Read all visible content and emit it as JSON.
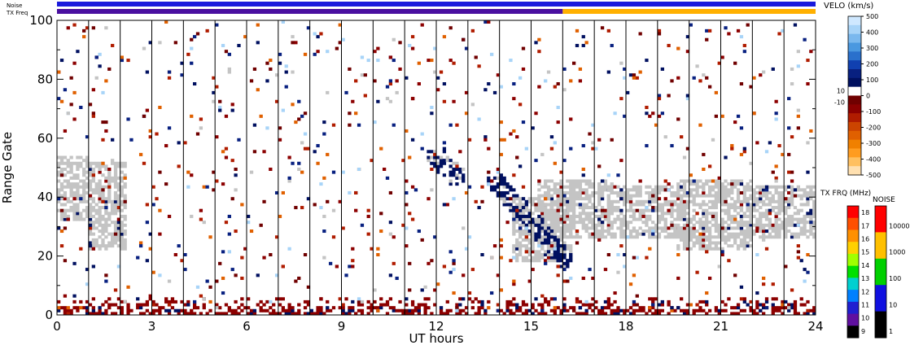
{
  "chart_data": {
    "type": "heatmap",
    "xlabel": "UT hours",
    "ylabel": "Range Gate",
    "xlim": [
      0,
      24
    ],
    "ylim": [
      0,
      100
    ],
    "x_ticks": [
      "0",
      "3",
      "6",
      "9",
      "12",
      "15",
      "18",
      "21",
      "24"
    ],
    "x_tick_values": [
      0,
      3,
      6,
      9,
      12,
      15,
      18,
      21,
      24
    ],
    "y_ticks": [
      "0",
      "20",
      "40",
      "60",
      "80",
      "100"
    ],
    "y_tick_values": [
      0,
      20,
      40,
      60,
      80,
      100
    ],
    "hour_markers": [
      1,
      2,
      3,
      4,
      5,
      6,
      7,
      8,
      9,
      10,
      11,
      12,
      13,
      14,
      15,
      16,
      17,
      18,
      19,
      20,
      21,
      22,
      23
    ],
    "status_bars": [
      {
        "label": "Noise",
        "segments": [
          {
            "from": 0,
            "to": 24,
            "color": "#1a1adc"
          }
        ]
      },
      {
        "label": "TX Freq",
        "segments": [
          {
            "from": 0,
            "to": 16,
            "color": "#4a10a0"
          },
          {
            "from": 16,
            "to": 24,
            "color": "#ffb000"
          }
        ]
      }
    ],
    "velocity_scale": {
      "title": "VELO (km/s)",
      "ticks": [
        "500",
        "400",
        "300",
        "200",
        "100",
        "0",
        "-100",
        "-200",
        "-300",
        "-400",
        "-500"
      ],
      "tick_values": [
        500,
        400,
        300,
        200,
        100,
        0,
        -100,
        -200,
        -300,
        -400,
        -500
      ],
      "side_labels": [
        "10",
        "-10"
      ],
      "side_label_values": [
        10,
        -10
      ],
      "colors": [
        "#cfe8ff",
        "#a8d4f8",
        "#7ab8ee",
        "#4a98e0",
        "#2a70cc",
        "#1040b0",
        "#082080",
        "#001060",
        "#ffffff",
        "#700000",
        "#8c0000",
        "#b01c00",
        "#cc4400",
        "#e06000",
        "#f08000",
        "#ff9c20",
        "#ffc060",
        "#ffe0b0"
      ]
    },
    "tx_freq_scale": {
      "title": "TX FRQ (MHz)",
      "ticks": [
        "18",
        "17",
        "16",
        "15",
        "14",
        "13",
        "12",
        "11",
        "10",
        "9"
      ],
      "colors": [
        "#ff0000",
        "#ff5000",
        "#ff9000",
        "#ffd000",
        "#a0ff00",
        "#00e000",
        "#00d0d0",
        "#0080ff",
        "#2020d0",
        "#6010a0",
        "#000000"
      ]
    },
    "noise_scale": {
      "title": "NOISE",
      "ticks": [
        "10000",
        "1000",
        "100",
        "10",
        "1"
      ],
      "colors": [
        "#ff0000",
        "#ffc000",
        "#00d000",
        "#1010e0",
        "#000000"
      ]
    },
    "echo_regions": [
      {
        "kind": "ground-scatter",
        "x0": 0,
        "x1": 1.0,
        "y0": 32,
        "y1": 54
      },
      {
        "kind": "ground-scatter",
        "x0": 1.0,
        "x1": 2.2,
        "y0": 22,
        "y1": 52
      },
      {
        "kind": "ground-scatter",
        "x0": 14.4,
        "x1": 16.2,
        "y0": 18,
        "y1": 40
      },
      {
        "kind": "ground-scatter",
        "x0": 15.2,
        "x1": 17.6,
        "y0": 26,
        "y1": 46
      },
      {
        "kind": "ground-scatter",
        "x0": 17.4,
        "x1": 19.8,
        "y0": 26,
        "y1": 44
      },
      {
        "kind": "ground-scatter",
        "x0": 19.6,
        "x1": 22.0,
        "y0": 22,
        "y1": 46
      },
      {
        "kind": "ground-scatter",
        "x0": 21.8,
        "x1": 24.0,
        "y0": 26,
        "y1": 44
      },
      {
        "kind": "negative-velocity",
        "x0": 0,
        "x1": 24,
        "y0": 0,
        "y1": 6
      },
      {
        "kind": "positive-velocity",
        "x0": 11.7,
        "x1": 12.8,
        "y0": 44,
        "y1": 56
      },
      {
        "kind": "positive-velocity",
        "x0": 13.6,
        "x1": 16.2,
        "y0": 16,
        "y1": 48
      }
    ]
  }
}
